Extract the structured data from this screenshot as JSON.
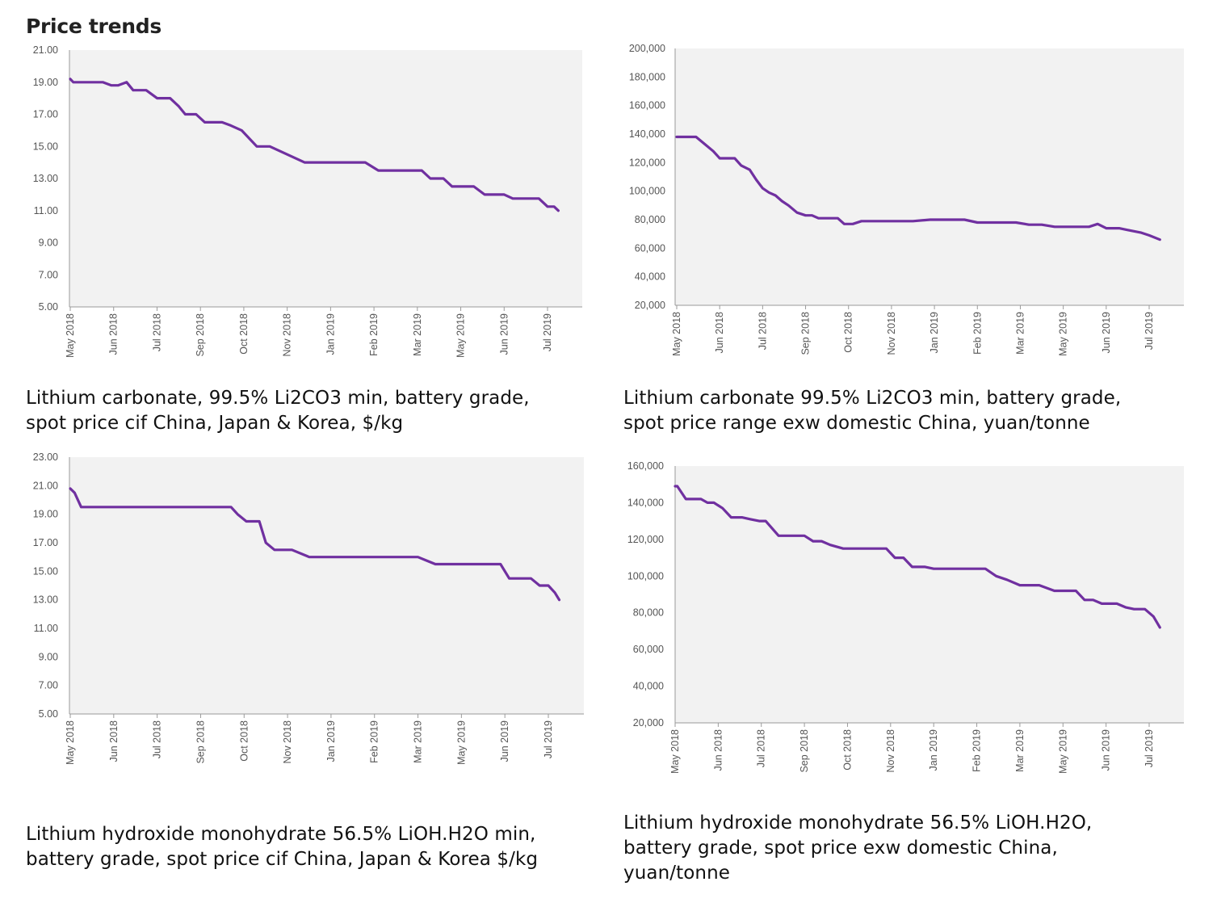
{
  "page": {
    "title": "Price trends"
  },
  "chart_data": [
    {
      "type": "line",
      "title": "Lithium carbonate, 99.5% Li2CO3 min, battery grade, spot price cif China, Japan & Korea, $/kg",
      "caption_lines": [
        "Lithium carbonate, 99.5% Li2CO3 min, battery grade,",
        "spot price cif China, Japan & Korea, $/kg"
      ],
      "xlabel": "",
      "ylabel": "",
      "x_ticks": [
        "May 2018",
        "Jun 2018",
        "Jul 2018",
        "Sep 2018",
        "Oct 2018",
        "Nov 2018",
        "Jan 2019",
        "Feb 2019",
        "Mar 2019",
        "May 2019",
        "Jun 2019",
        "Jul 2019"
      ],
      "y_ticks": [
        "5.00",
        "7.00",
        "9.00",
        "11.00",
        "13.00",
        "15.00",
        "17.00",
        "19.00",
        "21.00"
      ],
      "ylim": [
        5,
        21
      ],
      "x_tick_count": 12,
      "x_end": 11.25,
      "grid": false,
      "series": [
        {
          "color": "#7030a0",
          "x": [
            0,
            0.07,
            0.2,
            0.4,
            0.75,
            0.95,
            1.1,
            1.3,
            1.45,
            1.75,
            2.0,
            2.3,
            2.5,
            2.65,
            2.9,
            3.1,
            3.3,
            3.5,
            3.7,
            3.95,
            4.3,
            4.6,
            5.0,
            5.4,
            5.7,
            5.9,
            6.1,
            6.4,
            6.8,
            7.1,
            7.5,
            7.9,
            8.1,
            8.3,
            8.6,
            8.8,
            9.0,
            9.3,
            9.55,
            9.8,
            10.0,
            10.2,
            10.4,
            10.6,
            10.8,
            11.0,
            11.15,
            11.25
          ],
          "y": [
            19.2,
            19.0,
            19.0,
            19.0,
            19.0,
            18.8,
            18.8,
            19.0,
            18.5,
            18.5,
            18.0,
            18.0,
            17.5,
            17.0,
            17.0,
            16.5,
            16.5,
            16.5,
            16.3,
            16.0,
            15.0,
            15.0,
            14.5,
            14.0,
            14.0,
            14.0,
            14.0,
            14.0,
            14.0,
            13.5,
            13.5,
            13.5,
            13.5,
            13.0,
            13.0,
            12.5,
            12.5,
            12.5,
            12.0,
            12.0,
            12.0,
            11.75,
            11.75,
            11.75,
            11.75,
            11.25,
            11.25,
            11.0
          ]
        }
      ]
    },
    {
      "type": "line",
      "title": "Lithium carbonate 99.5% Li2CO3 min, battery grade, spot price range exw domestic China, yuan/tonne",
      "caption_lines": [
        "Lithium carbonate 99.5% Li2CO3 min, battery grade,",
        "spot price range exw domestic China, yuan/tonne"
      ],
      "xlabel": "",
      "ylabel": "",
      "x_ticks": [
        "May 2018",
        "Jun 2018",
        "Jul 2018",
        "Sep 2018",
        "Oct 2018",
        "Nov 2018",
        "Jan 2019",
        "Feb 2019",
        "Mar 2019",
        "May 2019",
        "Jun 2019",
        "Jul 2019"
      ],
      "y_ticks": [
        "20,000",
        "40,000",
        "60,000",
        "80,000",
        "100,000",
        "120,000",
        "140,000",
        "160,000",
        "180,000",
        "200,000"
      ],
      "ylim": [
        20000,
        200000
      ],
      "x_tick_count": 12,
      "x_end": 11.25,
      "grid": false,
      "series": [
        {
          "color": "#7030a0",
          "x": [
            0,
            0.3,
            0.45,
            0.65,
            0.85,
            1.0,
            1.2,
            1.35,
            1.5,
            1.7,
            1.85,
            2.0,
            2.15,
            2.3,
            2.45,
            2.6,
            2.8,
            3.0,
            3.15,
            3.3,
            3.5,
            3.75,
            3.9,
            4.1,
            4.3,
            4.5,
            4.8,
            5.2,
            5.5,
            5.9,
            6.1,
            6.4,
            6.7,
            7.0,
            7.3,
            7.6,
            7.9,
            8.2,
            8.5,
            8.8,
            9.1,
            9.4,
            9.6,
            9.8,
            10.0,
            10.3,
            10.55,
            10.8,
            11.0,
            11.25
          ],
          "y": [
            138000,
            138000,
            138000,
            133000,
            128000,
            123000,
            123000,
            123000,
            118000,
            115000,
            108000,
            102000,
            99000,
            97000,
            93000,
            90000,
            85000,
            83000,
            83000,
            81000,
            81000,
            81000,
            77000,
            77000,
            79000,
            79000,
            79000,
            79000,
            79000,
            80000,
            80000,
            80000,
            80000,
            78000,
            78000,
            78000,
            78000,
            76500,
            76500,
            75000,
            75000,
            75000,
            75000,
            77000,
            74000,
            74000,
            72500,
            71000,
            69000,
            66000
          ]
        }
      ]
    },
    {
      "type": "line",
      "title": "Lithium hydroxide monohydrate 56.5% LiOH.H2O min, battery grade, spot price cif China, Japan & Korea $/kg",
      "caption_lines": [
        "Lithium hydroxide monohydrate 56.5% LiOH.H2O min,",
        "battery grade, spot price cif China, Japan & Korea $/kg"
      ],
      "xlabel": "",
      "ylabel": "",
      "x_ticks": [
        "May 2018",
        "Jun 2018",
        "Jul 2018",
        "Sep 2018",
        "Oct 2018",
        "Nov 2018",
        "Jan 2019",
        "Feb 2019",
        "Mar 2019",
        "May 2019",
        "Jun 2019",
        "Jul 2019"
      ],
      "y_ticks": [
        "5.00",
        "7.00",
        "9.00",
        "11.00",
        "13.00",
        "15.00",
        "17.00",
        "19.00",
        "21.00",
        "23.00"
      ],
      "ylim": [
        5,
        23
      ],
      "x_tick_count": 12,
      "x_end": 11.25,
      "grid": false,
      "series": [
        {
          "color": "#7030a0",
          "x": [
            0,
            0.1,
            0.25,
            0.6,
            1.2,
            1.8,
            2.5,
            3.0,
            3.4,
            3.7,
            3.85,
            4.05,
            4.35,
            4.5,
            4.7,
            5.0,
            5.1,
            5.5,
            6.0,
            6.5,
            7.0,
            7.5,
            8.0,
            8.2,
            8.4,
            8.8,
            9.2,
            9.6,
            9.9,
            10.1,
            10.3,
            10.6,
            10.8,
            11.0,
            11.15,
            11.25
          ],
          "y": [
            20.8,
            20.5,
            19.5,
            19.5,
            19.5,
            19.5,
            19.5,
            19.5,
            19.5,
            19.5,
            19.0,
            18.5,
            18.5,
            17.0,
            16.5,
            16.5,
            16.5,
            16.0,
            16.0,
            16.0,
            16.0,
            16.0,
            16.0,
            15.75,
            15.5,
            15.5,
            15.5,
            15.5,
            15.5,
            14.5,
            14.5,
            14.5,
            14.0,
            14.0,
            13.5,
            13.0
          ]
        }
      ]
    },
    {
      "type": "line",
      "title": "Lithium hydroxide monohydrate 56.5% LiOH.H2O, battery grade, spot price exw domestic China, yuan/tonne",
      "caption_lines": [
        "Lithium hydroxide monohydrate 56.5% LiOH.H2O,",
        "battery grade, spot price exw domestic China,",
        "yuan/tonne"
      ],
      "xlabel": "",
      "ylabel": "",
      "x_ticks": [
        "May 2018",
        "Jun 2018",
        "Jul 2018",
        "Sep 2018",
        "Oct 2018",
        "Nov 2018",
        "Jan 2019",
        "Feb 2019",
        "Mar 2019",
        "May 2019",
        "Jun 2019",
        "Jul 2019"
      ],
      "y_ticks": [
        "20,000",
        "40,000",
        "60,000",
        "80,000",
        "100,000",
        "120,000",
        "140,000",
        "160,000"
      ],
      "ylim": [
        20000,
        160000
      ],
      "x_tick_count": 12,
      "x_end": 11.25,
      "grid": false,
      "series": [
        {
          "color": "#7030a0",
          "x": [
            0,
            0.05,
            0.25,
            0.6,
            0.75,
            0.9,
            1.1,
            1.3,
            1.55,
            1.75,
            1.95,
            2.1,
            2.4,
            2.7,
            3.0,
            3.2,
            3.4,
            3.6,
            3.9,
            4.3,
            4.6,
            4.9,
            5.1,
            5.3,
            5.5,
            5.8,
            6.0,
            6.4,
            6.8,
            7.0,
            7.2,
            7.45,
            7.7,
            8.0,
            8.2,
            8.45,
            8.8,
            9.0,
            9.15,
            9.3,
            9.5,
            9.7,
            9.9,
            10.05,
            10.25,
            10.45,
            10.65,
            10.9,
            11.1,
            11.25
          ],
          "y": [
            149000,
            149000,
            142000,
            142000,
            140000,
            140000,
            137000,
            132000,
            132000,
            131000,
            130000,
            130000,
            122000,
            122000,
            122000,
            119000,
            119000,
            117000,
            115000,
            115000,
            115000,
            115000,
            110000,
            110000,
            105000,
            105000,
            104000,
            104000,
            104000,
            104000,
            104000,
            100000,
            98000,
            95000,
            95000,
            95000,
            92000,
            92000,
            92000,
            92000,
            87000,
            87000,
            85000,
            85000,
            85000,
            83000,
            82000,
            82000,
            78000,
            72000
          ]
        }
      ]
    }
  ]
}
